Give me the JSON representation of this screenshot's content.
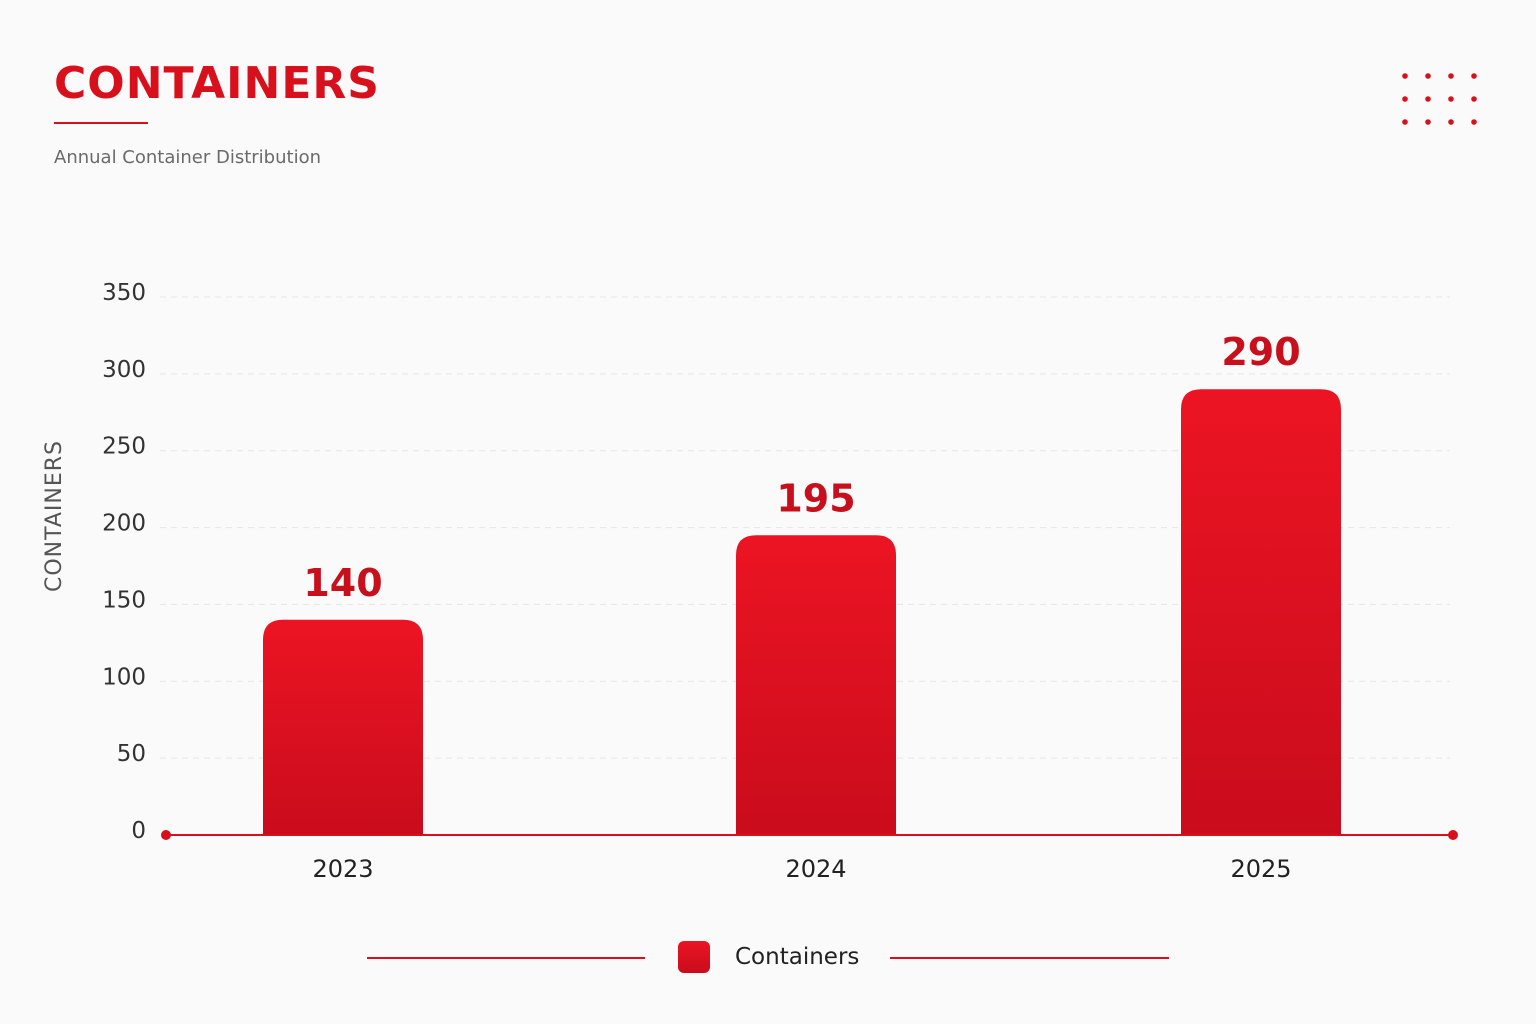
{
  "header": {
    "title": "CONTAINERS",
    "subtitle": "Annual Container Distribution"
  },
  "colors": {
    "accent": "#d7101c",
    "bar_top": "#ec1423",
    "bar_bottom": "#c90c1c",
    "grid": "#e6e6e6"
  },
  "icons": {
    "decoration": "dot-grid-icon"
  },
  "legend": {
    "label": "Containers"
  },
  "chart_data": {
    "type": "bar",
    "title": "CONTAINERS",
    "subtitle": "Annual Container Distribution",
    "categories": [
      "2023",
      "2024",
      "2025"
    ],
    "series": [
      {
        "name": "Containers",
        "values": [
          140,
          195,
          290
        ]
      }
    ],
    "value_labels": [
      "140",
      "195",
      "290"
    ],
    "xlabel": "",
    "ylabel": "CONTAINERS",
    "ylim": [
      0,
      350
    ],
    "yticks": [
      0,
      50,
      100,
      150,
      200,
      250,
      300,
      350
    ],
    "grid": true,
    "legend_position": "bottom-center"
  }
}
